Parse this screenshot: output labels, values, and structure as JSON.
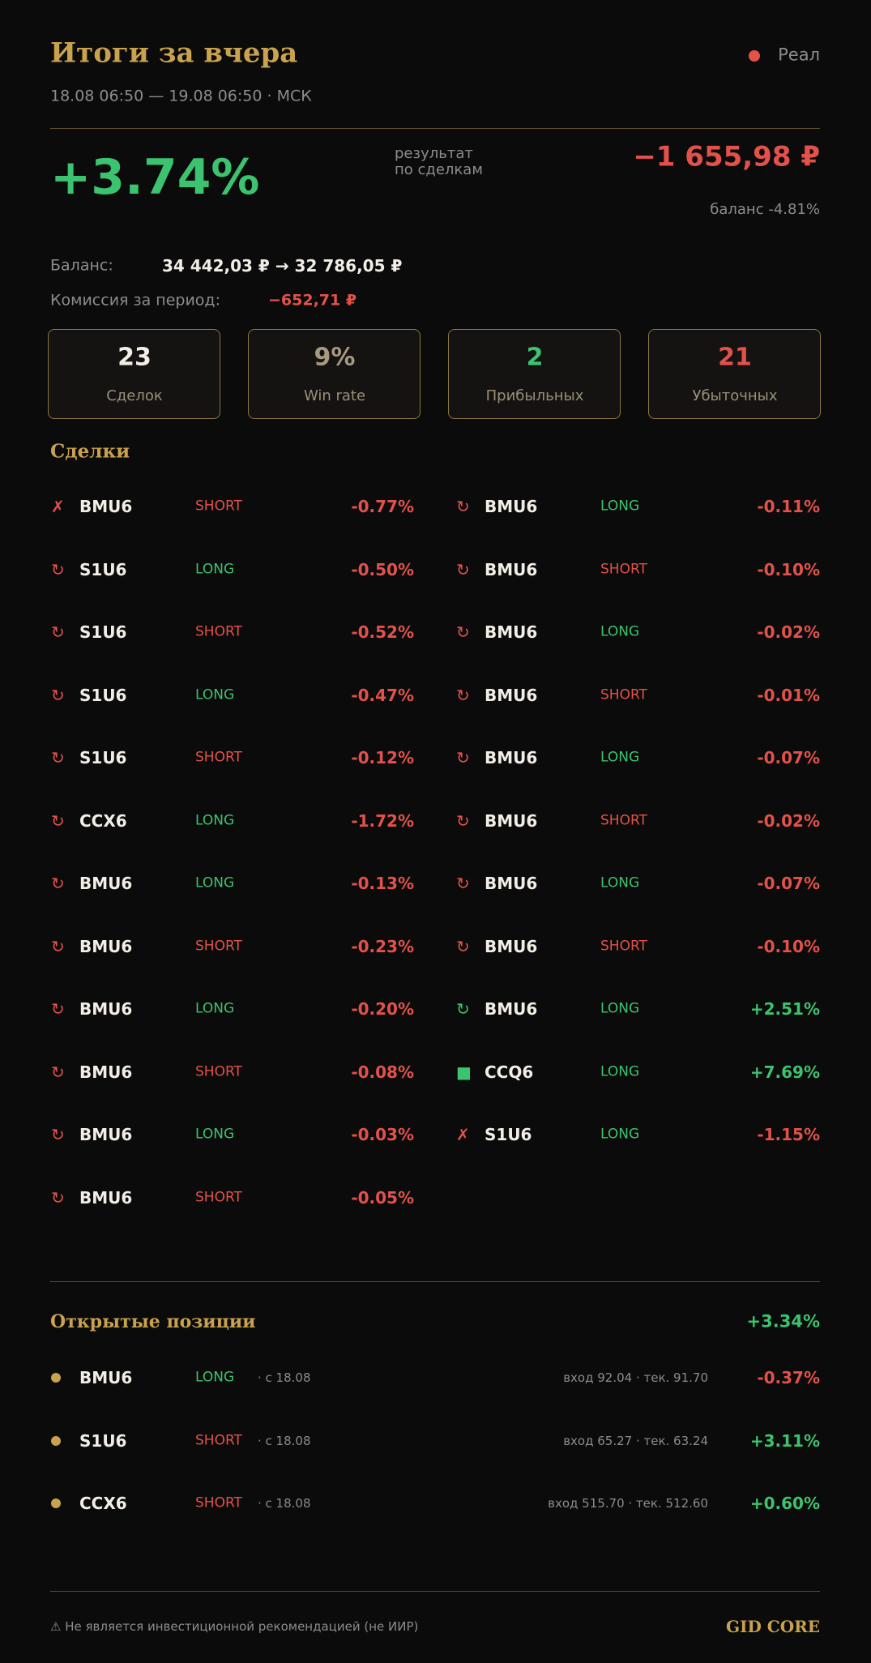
{
  "header": {
    "title": "Итоги за вчера",
    "mode": "Реал",
    "period": "18.08 06:50 — 19.08 06:50 · МСК"
  },
  "summary": {
    "result_pct": "+3.74%",
    "result_label": [
      "результат",
      "по сделкам"
    ],
    "pnl": "−1 655,98 ₽",
    "balance_change": "баланс -4.81%"
  },
  "balance": {
    "label": "Баланс:",
    "value": "34 442,03 ₽ → 32 786,05 ₽"
  },
  "commission": {
    "label": "Комиссия за период:",
    "value": "−652,71 ₽"
  },
  "stats": [
    {
      "value": "23",
      "label": "Сделок"
    },
    {
      "value": "9%",
      "label": "Win rate"
    },
    {
      "value": "2",
      "label": "Прибыльных"
    },
    {
      "value": "21",
      "label": "Убыточных"
    }
  ],
  "trades": {
    "title": "Сделки",
    "left": [
      {
        "icon": "✗",
        "ticker": "BMU6",
        "side": "SHORT",
        "pct": "-0.77%"
      },
      {
        "icon": "↻",
        "ticker": "S1U6",
        "side": "LONG",
        "pct": "-0.50%"
      },
      {
        "icon": "↻",
        "ticker": "S1U6",
        "side": "SHORT",
        "pct": "-0.52%"
      },
      {
        "icon": "↻",
        "ticker": "S1U6",
        "side": "LONG",
        "pct": "-0.47%"
      },
      {
        "icon": "↻",
        "ticker": "S1U6",
        "side": "SHORT",
        "pct": "-0.12%"
      },
      {
        "icon": "↻",
        "ticker": "CCX6",
        "side": "LONG",
        "pct": "-1.72%"
      },
      {
        "icon": "↻",
        "ticker": "BMU6",
        "side": "LONG",
        "pct": "-0.13%"
      },
      {
        "icon": "↻",
        "ticker": "BMU6",
        "side": "SHORT",
        "pct": "-0.23%"
      },
      {
        "icon": "↻",
        "ticker": "BMU6",
        "side": "LONG",
        "pct": "-0.20%"
      },
      {
        "icon": "↻",
        "ticker": "BMU6",
        "side": "SHORT",
        "pct": "-0.08%"
      },
      {
        "icon": "↻",
        "ticker": "BMU6",
        "side": "LONG",
        "pct": "-0.03%"
      },
      {
        "icon": "↻",
        "ticker": "BMU6",
        "side": "SHORT",
        "pct": "-0.05%"
      }
    ],
    "right": [
      {
        "icon": "↻",
        "ticker": "BMU6",
        "side": "LONG",
        "pct": "-0.11%"
      },
      {
        "icon": "↻",
        "ticker": "BMU6",
        "side": "SHORT",
        "pct": "-0.10%"
      },
      {
        "icon": "↻",
        "ticker": "BMU6",
        "side": "LONG",
        "pct": "-0.02%"
      },
      {
        "icon": "↻",
        "ticker": "BMU6",
        "side": "SHORT",
        "pct": "-0.01%"
      },
      {
        "icon": "↻",
        "ticker": "BMU6",
        "side": "LONG",
        "pct": "-0.07%"
      },
      {
        "icon": "↻",
        "ticker": "BMU6",
        "side": "SHORT",
        "pct": "-0.02%"
      },
      {
        "icon": "↻",
        "ticker": "BMU6",
        "side": "LONG",
        "pct": "-0.07%"
      },
      {
        "icon": "↻",
        "ticker": "BMU6",
        "side": "SHORT",
        "pct": "-0.10%"
      },
      {
        "icon": "↻",
        "ticker": "BMU6",
        "side": "LONG",
        "pct": "+2.51%"
      },
      {
        "icon": "■",
        "ticker": "CCQ6",
        "side": "LONG",
        "pct": "+7.69%"
      },
      {
        "icon": "✗",
        "ticker": "S1U6",
        "side": "LONG",
        "pct": "-1.15%"
      }
    ]
  },
  "positions": {
    "title": "Открытые позиции",
    "total": "+3.34%",
    "items": [
      {
        "ticker": "BMU6",
        "side": "LONG",
        "since": "· с 18.08",
        "prices": "вход 92.04 · тек. 91.70",
        "pct": "-0.37%"
      },
      {
        "ticker": "S1U6",
        "side": "SHORT",
        "since": "· с 18.08",
        "prices": "вход 65.27 · тек. 63.24",
        "pct": "+3.11%"
      },
      {
        "ticker": "CCX6",
        "side": "SHORT",
        "since": "· с 18.08",
        "prices": "вход 515.70 · тек. 512.60",
        "pct": "+0.60%"
      }
    ]
  },
  "footer": {
    "disclaimer": "⚠ Не является инвестиционной рекомендацией (не ИИР)",
    "brand": "GID CORE"
  }
}
